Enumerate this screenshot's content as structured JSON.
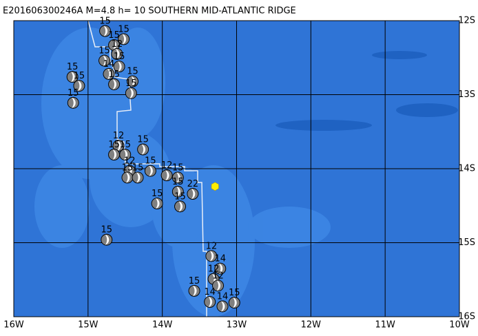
{
  "title": "E201606300246A M=4.8 h= 10 SOUTHERN MID-ATLANTIC RIDGE",
  "lonlim": [
    -16,
    -10
  ],
  "latlim": [
    -16,
    -12
  ],
  "lon_ticks": [
    {
      "value": -16,
      "label": "16W"
    },
    {
      "value": -15,
      "label": "15W"
    },
    {
      "value": -14,
      "label": "14W"
    },
    {
      "value": -13,
      "label": "13W"
    },
    {
      "value": -12,
      "label": "12W"
    },
    {
      "value": -11,
      "label": "11W"
    },
    {
      "value": -10,
      "label": "10W"
    }
  ],
  "lat_ticks": [
    {
      "value": -12,
      "label": "12S"
    },
    {
      "value": -13,
      "label": "13S"
    },
    {
      "value": -14,
      "label": "14S"
    },
    {
      "value": -15,
      "label": "15S"
    },
    {
      "value": -16,
      "label": "16S"
    }
  ],
  "main_event": {
    "lon": -13.29,
    "lat": -14.24,
    "color": "#ffee00"
  },
  "events": [
    {
      "label": "15",
      "lon": -14.77,
      "lat": -12.14
    },
    {
      "label": "15",
      "lon": -14.52,
      "lat": -12.25
    },
    {
      "label": "15",
      "lon": -14.65,
      "lat": -12.33
    },
    {
      "label": "12",
      "lon": -14.61,
      "lat": -12.45
    },
    {
      "label": "15",
      "lon": -14.78,
      "lat": -12.54
    },
    {
      "label": "15",
      "lon": -14.58,
      "lat": -12.62
    },
    {
      "label": "14",
      "lon": -14.72,
      "lat": -12.72
    },
    {
      "label": "15",
      "lon": -15.21,
      "lat": -12.76
    },
    {
      "label": "15",
      "lon": -15.12,
      "lat": -12.88
    },
    {
      "label": "15",
      "lon": -14.65,
      "lat": -12.86
    },
    {
      "label": "15",
      "lon": -14.4,
      "lat": -12.82
    },
    {
      "label": "15",
      "lon": -14.42,
      "lat": -12.98
    },
    {
      "label": "15",
      "lon": -15.2,
      "lat": -13.11
    },
    {
      "label": "12",
      "lon": -14.59,
      "lat": -13.69
    },
    {
      "label": "15",
      "lon": -14.65,
      "lat": -13.81
    },
    {
      "label": "15",
      "lon": -14.5,
      "lat": -13.81
    },
    {
      "label": "15",
      "lon": -14.26,
      "lat": -13.74
    },
    {
      "label": "12",
      "lon": -14.44,
      "lat": -14.03
    },
    {
      "label": "15",
      "lon": -14.47,
      "lat": -14.12
    },
    {
      "label": "15",
      "lon": -14.33,
      "lat": -14.12
    },
    {
      "label": "15",
      "lon": -14.16,
      "lat": -14.03
    },
    {
      "label": "12",
      "lon": -13.94,
      "lat": -14.09
    },
    {
      "label": "15",
      "lon": -13.79,
      "lat": -14.12
    },
    {
      "label": "15",
      "lon": -13.79,
      "lat": -14.31
    },
    {
      "label": "22",
      "lon": -13.59,
      "lat": -14.34
    },
    {
      "label": "15",
      "lon": -14.07,
      "lat": -14.47
    },
    {
      "label": "15",
      "lon": -13.76,
      "lat": -14.51
    },
    {
      "label": "15",
      "lon": -14.75,
      "lat": -14.96
    },
    {
      "label": "12",
      "lon": -13.34,
      "lat": -15.18
    },
    {
      "label": "14",
      "lon": -13.22,
      "lat": -15.35
    },
    {
      "label": "12",
      "lon": -13.31,
      "lat": -15.49
    },
    {
      "label": "12",
      "lon": -13.25,
      "lat": -15.58
    },
    {
      "label": "15",
      "lon": -13.57,
      "lat": -15.65
    },
    {
      "label": "14",
      "lon": -13.36,
      "lat": -15.8
    },
    {
      "label": "15",
      "lon": -13.03,
      "lat": -15.81
    },
    {
      "label": "14",
      "lon": -13.19,
      "lat": -15.86
    }
  ]
}
